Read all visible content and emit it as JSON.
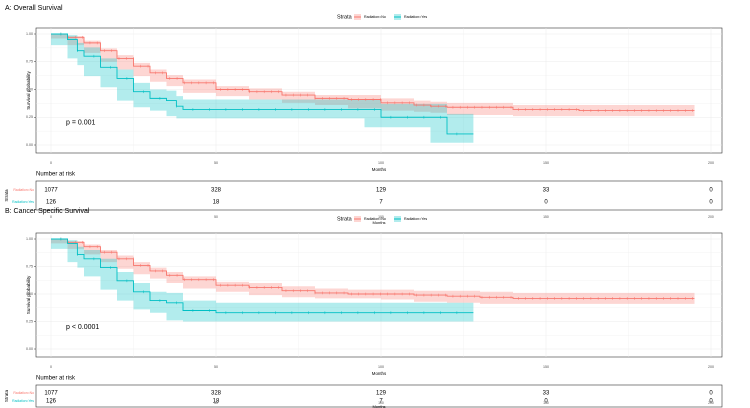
{
  "colors": {
    "no": "#F8766D",
    "yes": "#00BFC4",
    "panel_bg": "#ffffff",
    "grid": "#ebebeb",
    "axis_text": "#4d4d4d",
    "text": "#000000"
  },
  "chart_data": [
    {
      "type": "line",
      "panel": "A",
      "title": "A: Overall Survival",
      "legend_title": "Strata",
      "legend_position": "top",
      "xlabel": "Months",
      "ylabel": "Survival probability",
      "xlim": [
        0,
        200
      ],
      "ylim": [
        0,
        1
      ],
      "x_ticks": [
        "0",
        "50",
        "100",
        "150",
        "200"
      ],
      "y_ticks": [
        "0.00",
        "0.25",
        "0.50",
        "0.75",
        "1.00"
      ],
      "grid": true,
      "pvalue_label": "p = 0.001",
      "series": [
        {
          "name": "Radiation=No",
          "x": [
            0,
            5,
            10,
            15,
            20,
            25,
            30,
            35,
            40,
            50,
            60,
            70,
            80,
            90,
            100,
            110,
            115,
            120,
            140,
            160,
            180,
            195
          ],
          "y": [
            1.0,
            0.97,
            0.92,
            0.85,
            0.78,
            0.71,
            0.65,
            0.6,
            0.56,
            0.5,
            0.48,
            0.45,
            0.42,
            0.41,
            0.38,
            0.36,
            0.35,
            0.34,
            0.32,
            0.31,
            0.31,
            0.31
          ],
          "lower": [
            1.0,
            0.96,
            0.9,
            0.83,
            0.75,
            0.68,
            0.62,
            0.57,
            0.53,
            0.47,
            0.44,
            0.41,
            0.38,
            0.36,
            0.33,
            0.31,
            0.3,
            0.29,
            0.27,
            0.26,
            0.26,
            0.26
          ],
          "upper": [
            1.0,
            0.98,
            0.94,
            0.87,
            0.81,
            0.74,
            0.68,
            0.63,
            0.59,
            0.53,
            0.51,
            0.48,
            0.45,
            0.45,
            0.42,
            0.4,
            0.39,
            0.38,
            0.36,
            0.36,
            0.36,
            0.36
          ]
        },
        {
          "name": "Radiation=Yes",
          "x": [
            0,
            5,
            8,
            10,
            15,
            20,
            25,
            30,
            35,
            38,
            40,
            50,
            60,
            80,
            95,
            100,
            105,
            115,
            120,
            128
          ],
          "y": [
            1.0,
            0.95,
            0.85,
            0.8,
            0.7,
            0.6,
            0.48,
            0.42,
            0.4,
            0.35,
            0.32,
            0.32,
            0.32,
            0.32,
            0.32,
            0.25,
            0.25,
            0.25,
            0.1,
            0.1
          ],
          "lower": [
            1.0,
            0.9,
            0.78,
            0.72,
            0.62,
            0.52,
            0.4,
            0.34,
            0.31,
            0.26,
            0.24,
            0.24,
            0.24,
            0.24,
            0.24,
            0.16,
            0.16,
            0.16,
            0.02,
            0.02
          ],
          "upper": [
            1.0,
            0.99,
            0.92,
            0.88,
            0.78,
            0.68,
            0.56,
            0.5,
            0.49,
            0.44,
            0.41,
            0.41,
            0.41,
            0.41,
            0.41,
            0.37,
            0.37,
            0.37,
            0.28,
            0.28
          ]
        }
      ],
      "risk_table": {
        "title": "Number at risk",
        "y_label": "Strata",
        "xlabel": "Months",
        "x_ticks": [
          "0",
          "50",
          "100",
          "150",
          "200"
        ],
        "times": [
          0,
          50,
          100,
          150,
          200
        ],
        "rows": [
          {
            "label": "Radiation=No",
            "values": [
              "1077",
              "328",
              "129",
              "33",
              "0"
            ]
          },
          {
            "label": "Radiation=Yes",
            "values": [
              "126",
              "18",
              "7",
              "0",
              "0"
            ]
          }
        ]
      }
    },
    {
      "type": "line",
      "panel": "B",
      "title": "B: Cancer Specific Survival",
      "legend_title": "Strata",
      "legend_position": "top",
      "xlabel": "Months",
      "ylabel": "Survival probability",
      "xlim": [
        0,
        200
      ],
      "ylim": [
        0,
        1
      ],
      "x_ticks": [
        "0",
        "50",
        "100",
        "150",
        "200"
      ],
      "y_ticks": [
        "0.00",
        "0.25",
        "0.50",
        "0.75",
        "1.00"
      ],
      "grid": true,
      "pvalue_label": "p < 0.0001",
      "series": [
        {
          "name": "Radiation=No",
          "x": [
            0,
            5,
            10,
            15,
            20,
            25,
            30,
            35,
            40,
            50,
            60,
            70,
            80,
            90,
            100,
            110,
            120,
            130,
            140,
            150,
            160,
            180,
            195
          ],
          "y": [
            1.0,
            0.97,
            0.93,
            0.88,
            0.82,
            0.76,
            0.71,
            0.67,
            0.63,
            0.58,
            0.56,
            0.53,
            0.51,
            0.5,
            0.5,
            0.49,
            0.48,
            0.47,
            0.46,
            0.46,
            0.46,
            0.46,
            0.46
          ],
          "lower": [
            1.0,
            0.96,
            0.91,
            0.86,
            0.79,
            0.73,
            0.68,
            0.64,
            0.6,
            0.55,
            0.52,
            0.49,
            0.47,
            0.46,
            0.46,
            0.45,
            0.43,
            0.42,
            0.41,
            0.41,
            0.41,
            0.41,
            0.41
          ],
          "upper": [
            1.0,
            0.98,
            0.95,
            0.9,
            0.85,
            0.79,
            0.74,
            0.7,
            0.66,
            0.61,
            0.6,
            0.57,
            0.55,
            0.54,
            0.54,
            0.53,
            0.53,
            0.52,
            0.51,
            0.51,
            0.51,
            0.51,
            0.51
          ]
        },
        {
          "name": "Radiation=Yes",
          "x": [
            0,
            5,
            8,
            10,
            15,
            20,
            25,
            30,
            35,
            40,
            50,
            60,
            80,
            100,
            120,
            128
          ],
          "y": [
            1.0,
            0.96,
            0.86,
            0.82,
            0.74,
            0.62,
            0.52,
            0.44,
            0.42,
            0.35,
            0.33,
            0.33,
            0.33,
            0.33,
            0.33,
            0.33
          ],
          "lower": [
            1.0,
            0.91,
            0.79,
            0.74,
            0.66,
            0.54,
            0.44,
            0.36,
            0.33,
            0.26,
            0.25,
            0.25,
            0.25,
            0.25,
            0.25,
            0.25
          ],
          "upper": [
            1.0,
            0.99,
            0.93,
            0.9,
            0.82,
            0.7,
            0.6,
            0.52,
            0.51,
            0.44,
            0.42,
            0.42,
            0.42,
            0.42,
            0.42,
            0.42
          ]
        }
      ],
      "risk_table": {
        "title": "Number at risk",
        "y_label": "Strata",
        "xlabel": "Months",
        "x_ticks": [
          "0",
          "50",
          "100",
          "150",
          "200"
        ],
        "times": [
          0,
          50,
          100,
          150,
          200
        ],
        "rows": [
          {
            "label": "Radiation=No",
            "values": [
              "1077",
              "328",
              "129",
              "33",
              "0"
            ]
          },
          {
            "label": "Radiation=Yes",
            "values": [
              "126",
              "18",
              "7",
              "0",
              "0"
            ]
          }
        ]
      }
    }
  ]
}
